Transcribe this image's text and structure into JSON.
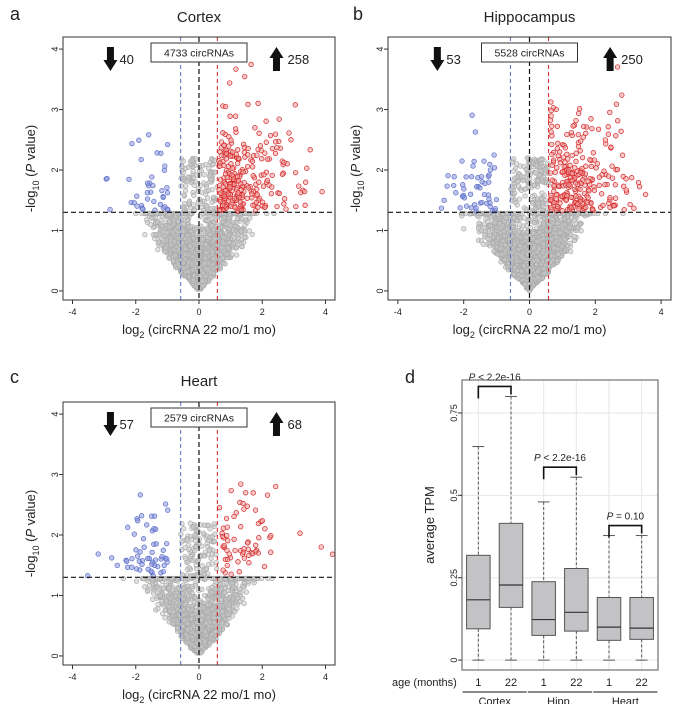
{
  "chart_data": [
    {
      "type": "scatter",
      "panel_letter": "a",
      "title": "Cortex",
      "xlabel": "log₂ (circRNA 22 mo/1 mo)",
      "ylabel": "-log₁₀ (P value)",
      "xlim": [
        -4.3,
        4.3
      ],
      "ylim": [
        -0.15,
        4.2
      ],
      "xticks": [
        -4,
        -2,
        0,
        2,
        4
      ],
      "yticks": [
        0,
        1,
        2,
        3,
        4
      ],
      "fc_thresholds": [
        -0.58,
        0.58
      ],
      "p_threshold": 1.3,
      "total_label": "4733 circRNAs",
      "down_count": "40",
      "up_count": "258",
      "gen": {
        "seed": 11,
        "n_gray": 1900,
        "n_down": 40,
        "n_up": 258,
        "sx": 1.15,
        "ymax": 3.9
      },
      "colors": {
        "down": "#5a6cc8",
        "up": "#d42222",
        "ns": "#c8c8c8"
      }
    },
    {
      "type": "scatter",
      "panel_letter": "b",
      "title": "Hippocampus",
      "xlabel": "log₂ (circRNA 22 mo/1 mo)",
      "ylabel": "-log₁₀ (P value)",
      "xlim": [
        -4.3,
        4.3
      ],
      "ylim": [
        -0.15,
        4.2
      ],
      "xticks": [
        -4,
        -2,
        0,
        2,
        4
      ],
      "yticks": [
        0,
        1,
        2,
        3,
        4
      ],
      "fc_thresholds": [
        -0.58,
        0.58
      ],
      "p_threshold": 1.3,
      "total_label": "5528 circRNAs",
      "down_count": "53",
      "up_count": "250",
      "gen": {
        "seed": 23,
        "n_gray": 2200,
        "n_down": 53,
        "n_up": 250,
        "sx": 1.25,
        "ymax": 4.1
      },
      "colors": {
        "down": "#5a6cc8",
        "up": "#d42222",
        "ns": "#c8c8c8"
      }
    },
    {
      "type": "scatter",
      "panel_letter": "c",
      "title": "Heart",
      "xlabel": "log₂ (circRNA 22 mo/1 mo)",
      "ylabel": "-log₁₀ (P value)",
      "xlim": [
        -4.3,
        4.3
      ],
      "ylim": [
        -0.15,
        4.2
      ],
      "xticks": [
        -4,
        -2,
        0,
        2,
        4
      ],
      "yticks": [
        0,
        1,
        2,
        3,
        4
      ],
      "fc_thresholds": [
        -0.58,
        0.58
      ],
      "p_threshold": 1.3,
      "total_label": "2579 circRNAs",
      "down_count": "57",
      "up_count": "68",
      "gen": {
        "seed": 37,
        "n_gray": 1300,
        "n_down": 57,
        "n_up": 68,
        "sx": 1.25,
        "ymax": 3.2
      },
      "colors": {
        "down": "#5a6cc8",
        "up": "#d42222",
        "ns": "#c8c8c8"
      }
    },
    {
      "type": "box",
      "panel_letter": "d",
      "ylabel": "average TPM",
      "ylim": [
        -0.03,
        0.85
      ],
      "yticks": [
        0,
        0.25,
        0.5,
        0.75
      ],
      "ytick_labels": [
        "0",
        "0.25",
        "0.5",
        "0.75"
      ],
      "x_axis_label": "age (months)",
      "groups": [
        {
          "name": "Cortex",
          "pvalue": "P < 2.2e-16",
          "boxes": [
            {
              "age": "1",
              "whisker_low": 0.0,
              "q1": 0.095,
              "median": 0.183,
              "q3": 0.318,
              "whisker_high": 0.648
            },
            {
              "age": "22",
              "whisker_low": 0.0,
              "q1": 0.16,
              "median": 0.228,
              "q3": 0.415,
              "whisker_high": 0.8
            }
          ]
        },
        {
          "name": "Hipp.",
          "pvalue": "P < 2.2e-16",
          "boxes": [
            {
              "age": "1",
              "whisker_low": 0.0,
              "q1": 0.075,
              "median": 0.123,
              "q3": 0.238,
              "whisker_high": 0.48
            },
            {
              "age": "22",
              "whisker_low": 0.0,
              "q1": 0.088,
              "median": 0.145,
              "q3": 0.278,
              "whisker_high": 0.555
            }
          ]
        },
        {
          "name": "Heart",
          "pvalue": "P = 0.10",
          "boxes": [
            {
              "age": "1",
              "whisker_low": 0.0,
              "q1": 0.06,
              "median": 0.1,
              "q3": 0.19,
              "whisker_high": 0.378
            },
            {
              "age": "22",
              "whisker_low": 0.0,
              "q1": 0.063,
              "median": 0.097,
              "q3": 0.19,
              "whisker_high": 0.378
            }
          ]
        }
      ],
      "colors": {
        "box_fill": "#c3c3c6",
        "box_stroke": "#555555",
        "grid": "#e6e6e6"
      }
    }
  ]
}
